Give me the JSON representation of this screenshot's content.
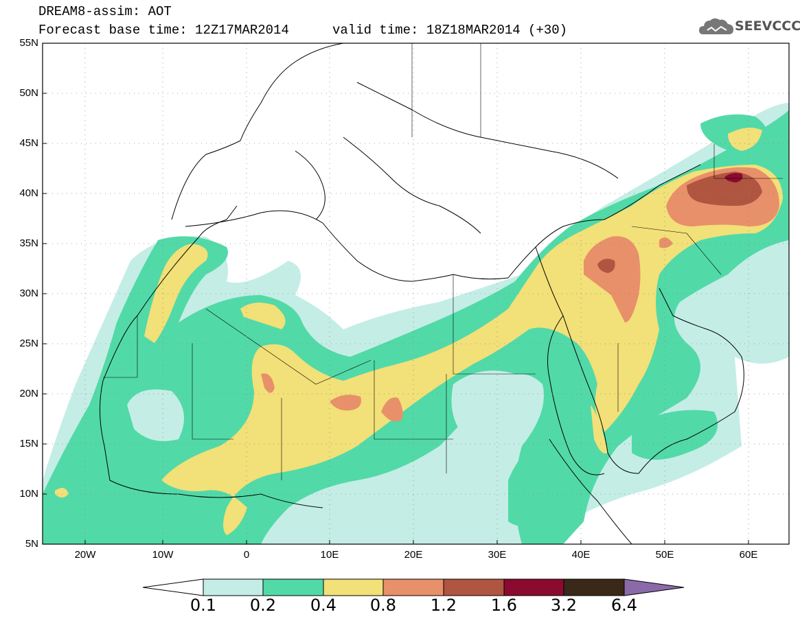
{
  "header": {
    "line1": "DREAM8-assim: AOT",
    "line2": "Forecast base time: 12Z17MAR2014",
    "line3": "valid time: 18Z18MAR2014 (+30)",
    "logo_text": "SEEVCCC",
    "logo_icon": "cloud-icon"
  },
  "axes": {
    "lat_labels": [
      "55N",
      "50N",
      "45N",
      "40N",
      "35N",
      "30N",
      "25N",
      "20N",
      "15N",
      "10N",
      "5N"
    ],
    "lon_labels": [
      "20W",
      "10W",
      "0",
      "10E",
      "20E",
      "30E",
      "40E",
      "50E",
      "60E"
    ]
  },
  "legend": {
    "labels": [
      "0.1",
      "0.2",
      "0.4",
      "0.8",
      "1.2",
      "1.6",
      "3.2",
      "6.4"
    ],
    "colors": [
      "#ffffff",
      "#c4ede6",
      "#52d9a8",
      "#f2e078",
      "#e8906a",
      "#b05540",
      "#8b0a30",
      "#3a2818",
      "#8a6aa8"
    ]
  }
}
